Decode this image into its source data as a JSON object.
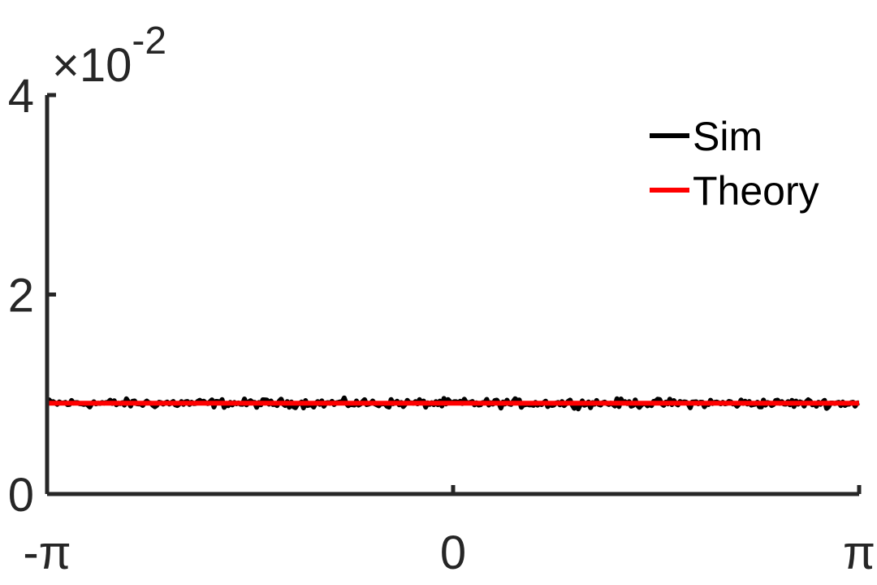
{
  "chart_data": {
    "type": "line",
    "title": "",
    "xlabel": "",
    "ylabel": "",
    "xlim": [
      -3.14159,
      3.14159
    ],
    "ylim": [
      0,
      0.04
    ],
    "y_scale_label": {
      "base": "×10",
      "exponent": "-2"
    },
    "x_ticks": [
      {
        "value": -3.14159,
        "label": "-π"
      },
      {
        "value": 0,
        "label": "0"
      },
      {
        "value": 3.14159,
        "label": "π"
      }
    ],
    "y_ticks": [
      {
        "value": 0,
        "label": "0"
      },
      {
        "value": 0.02,
        "label": "2"
      },
      {
        "value": 0.04,
        "label": "4"
      }
    ],
    "grid": false,
    "legend_position": "top-right",
    "series": [
      {
        "name": "Sim",
        "color": "#000000",
        "mean": 0.0091,
        "noise_amplitude": 0.0006,
        "n_points": 400
      },
      {
        "name": "Theory",
        "color": "#ff0000",
        "x": [
          -3.14159,
          3.14159
        ],
        "values": [
          0.0091,
          0.0091
        ]
      }
    ]
  }
}
